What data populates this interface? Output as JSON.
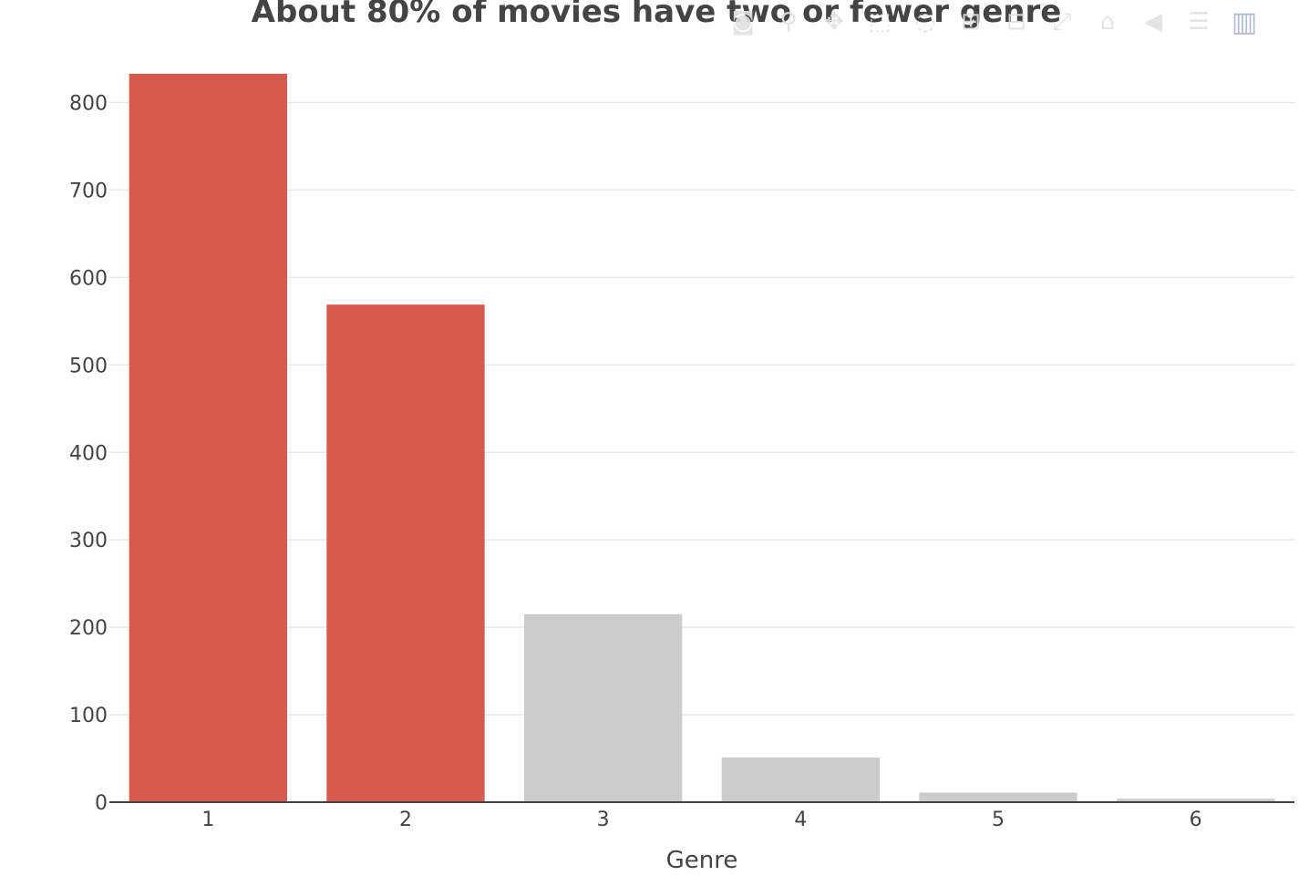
{
  "chart_data": {
    "type": "bar",
    "title": "About 80% of movies have two or fewer genre",
    "xlabel": "Genre",
    "ylabel": "",
    "categories": [
      "1",
      "2",
      "3",
      "4",
      "5",
      "6"
    ],
    "values": [
      833,
      569,
      215,
      51,
      11,
      4
    ],
    "bar_colors": [
      "#d65a4e",
      "#d65a4e",
      "#cccccc",
      "#cccccc",
      "#cccccc",
      "#cccccc"
    ],
    "ylim": [
      0,
      860
    ],
    "yticks": [
      0,
      100,
      200,
      300,
      400,
      500,
      600,
      700,
      800
    ],
    "grid": true,
    "legend": "none"
  },
  "modebar": {
    "icons": [
      {
        "name": "camera-icon",
        "glyph": "◙"
      },
      {
        "name": "zoom-icon",
        "glyph": "⚲"
      },
      {
        "name": "pan-icon",
        "glyph": "✥"
      },
      {
        "name": "box-select-icon",
        "glyph": "⬚"
      },
      {
        "name": "lasso-select-icon",
        "glyph": "◌"
      },
      {
        "name": "zoom-in-icon",
        "glyph": "⊞"
      },
      {
        "name": "zoom-out-icon",
        "glyph": "⊟"
      },
      {
        "name": "autoscale-icon",
        "glyph": "⤢"
      },
      {
        "name": "home-icon",
        "glyph": "⌂"
      },
      {
        "name": "spike-lines-icon",
        "glyph": "◀"
      },
      {
        "name": "compare-hover-icon",
        "glyph": "☰"
      },
      {
        "name": "plotly-logo-icon",
        "glyph": "▥"
      }
    ]
  }
}
